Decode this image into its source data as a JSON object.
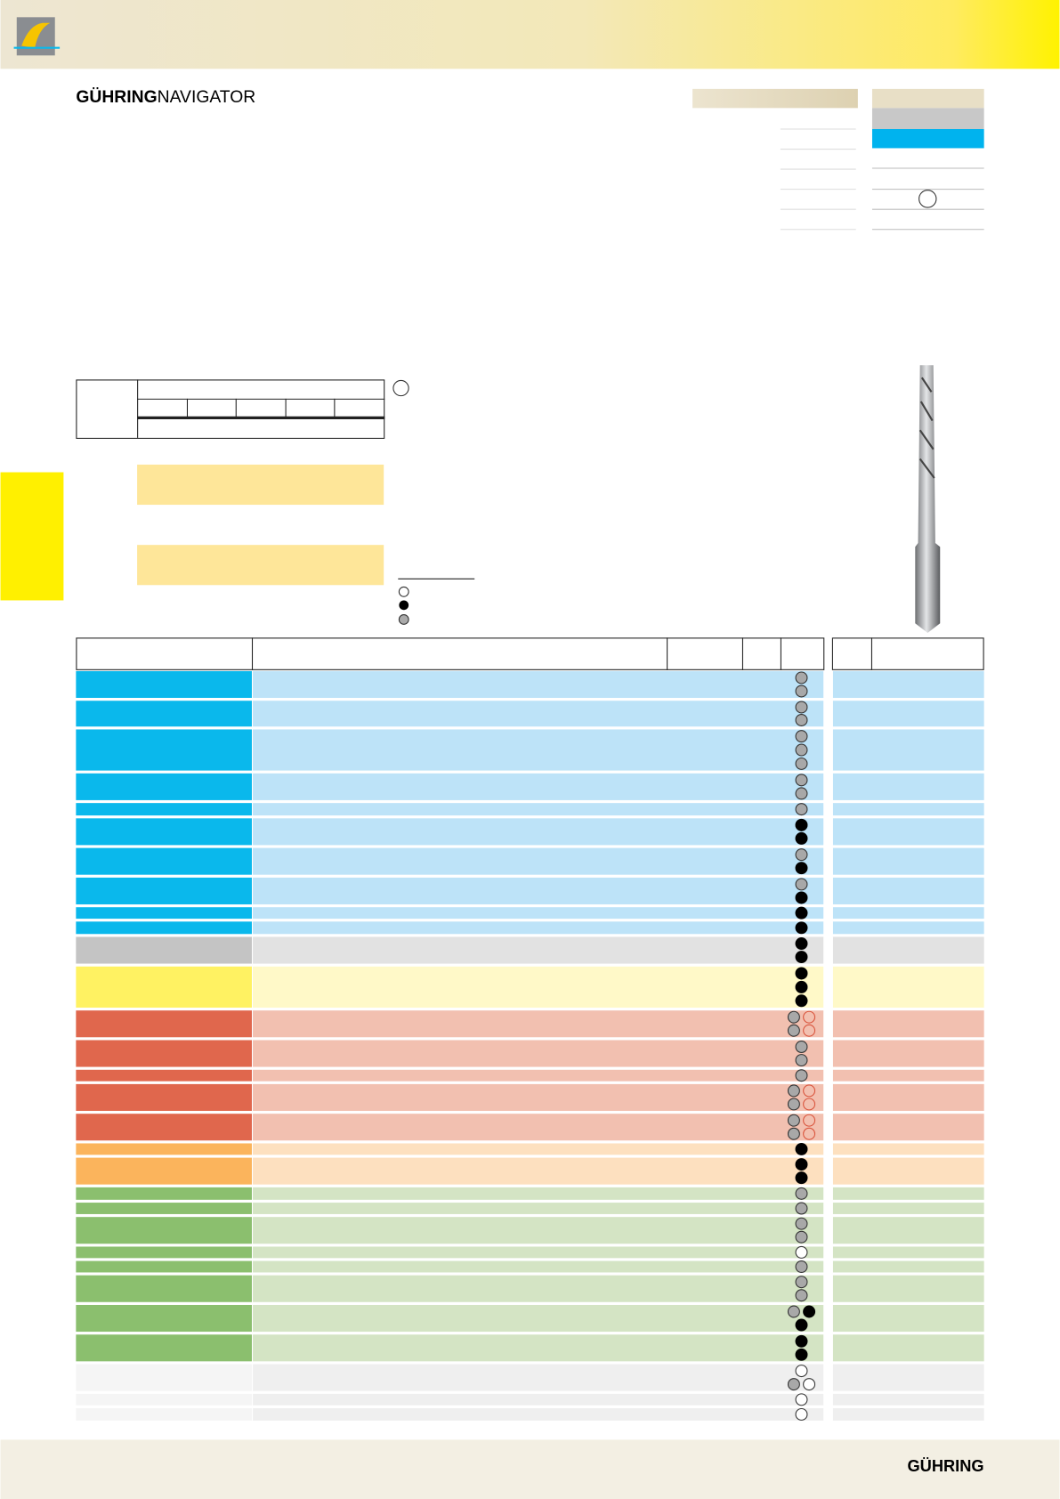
{
  "header": {
    "brand": "GÜHRING",
    "product": "NAVIGATOR"
  },
  "footer": {
    "brand": "GÜHRING"
  }
}
